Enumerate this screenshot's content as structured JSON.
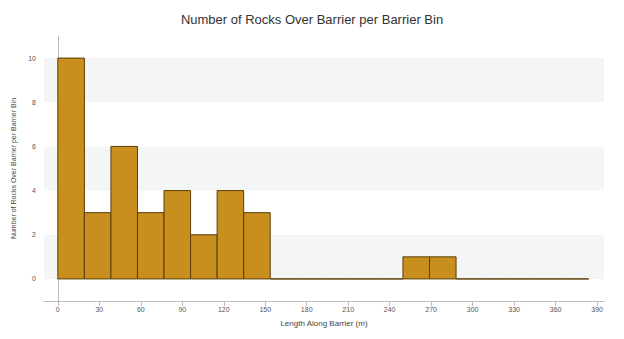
{
  "chart_data": {
    "type": "histogram",
    "title": "Number of Rocks Over Barrier per Barrier Bin",
    "x_label": "Length Along Barrier (m)",
    "y_label": "Number of Rocks Over Barrier per Barrier Bin",
    "bins": [
      0,
      19.2,
      38.4,
      57.6,
      76.8,
      96,
      115.2,
      134.4,
      153.6,
      172.8,
      192,
      211.2,
      230.4,
      249.6,
      268.8,
      288,
      307.2,
      326.4,
      345.6,
      364.8,
      384
    ],
    "values": [
      10,
      3,
      6,
      3,
      4,
      2,
      4,
      3,
      0,
      0,
      0,
      0,
      0,
      1,
      1,
      0,
      0,
      0,
      0,
      0
    ],
    "color": "#c98f1e",
    "xlim": [
      -10,
      395
    ],
    "xticks": [
      0,
      30,
      60,
      90,
      120,
      150,
      180,
      210,
      240,
      270,
      300,
      330,
      360,
      390
    ],
    "ylim": [
      -1,
      11
    ],
    "yticks": [
      0,
      2,
      4,
      6,
      8,
      10
    ],
    "grid": true
  }
}
